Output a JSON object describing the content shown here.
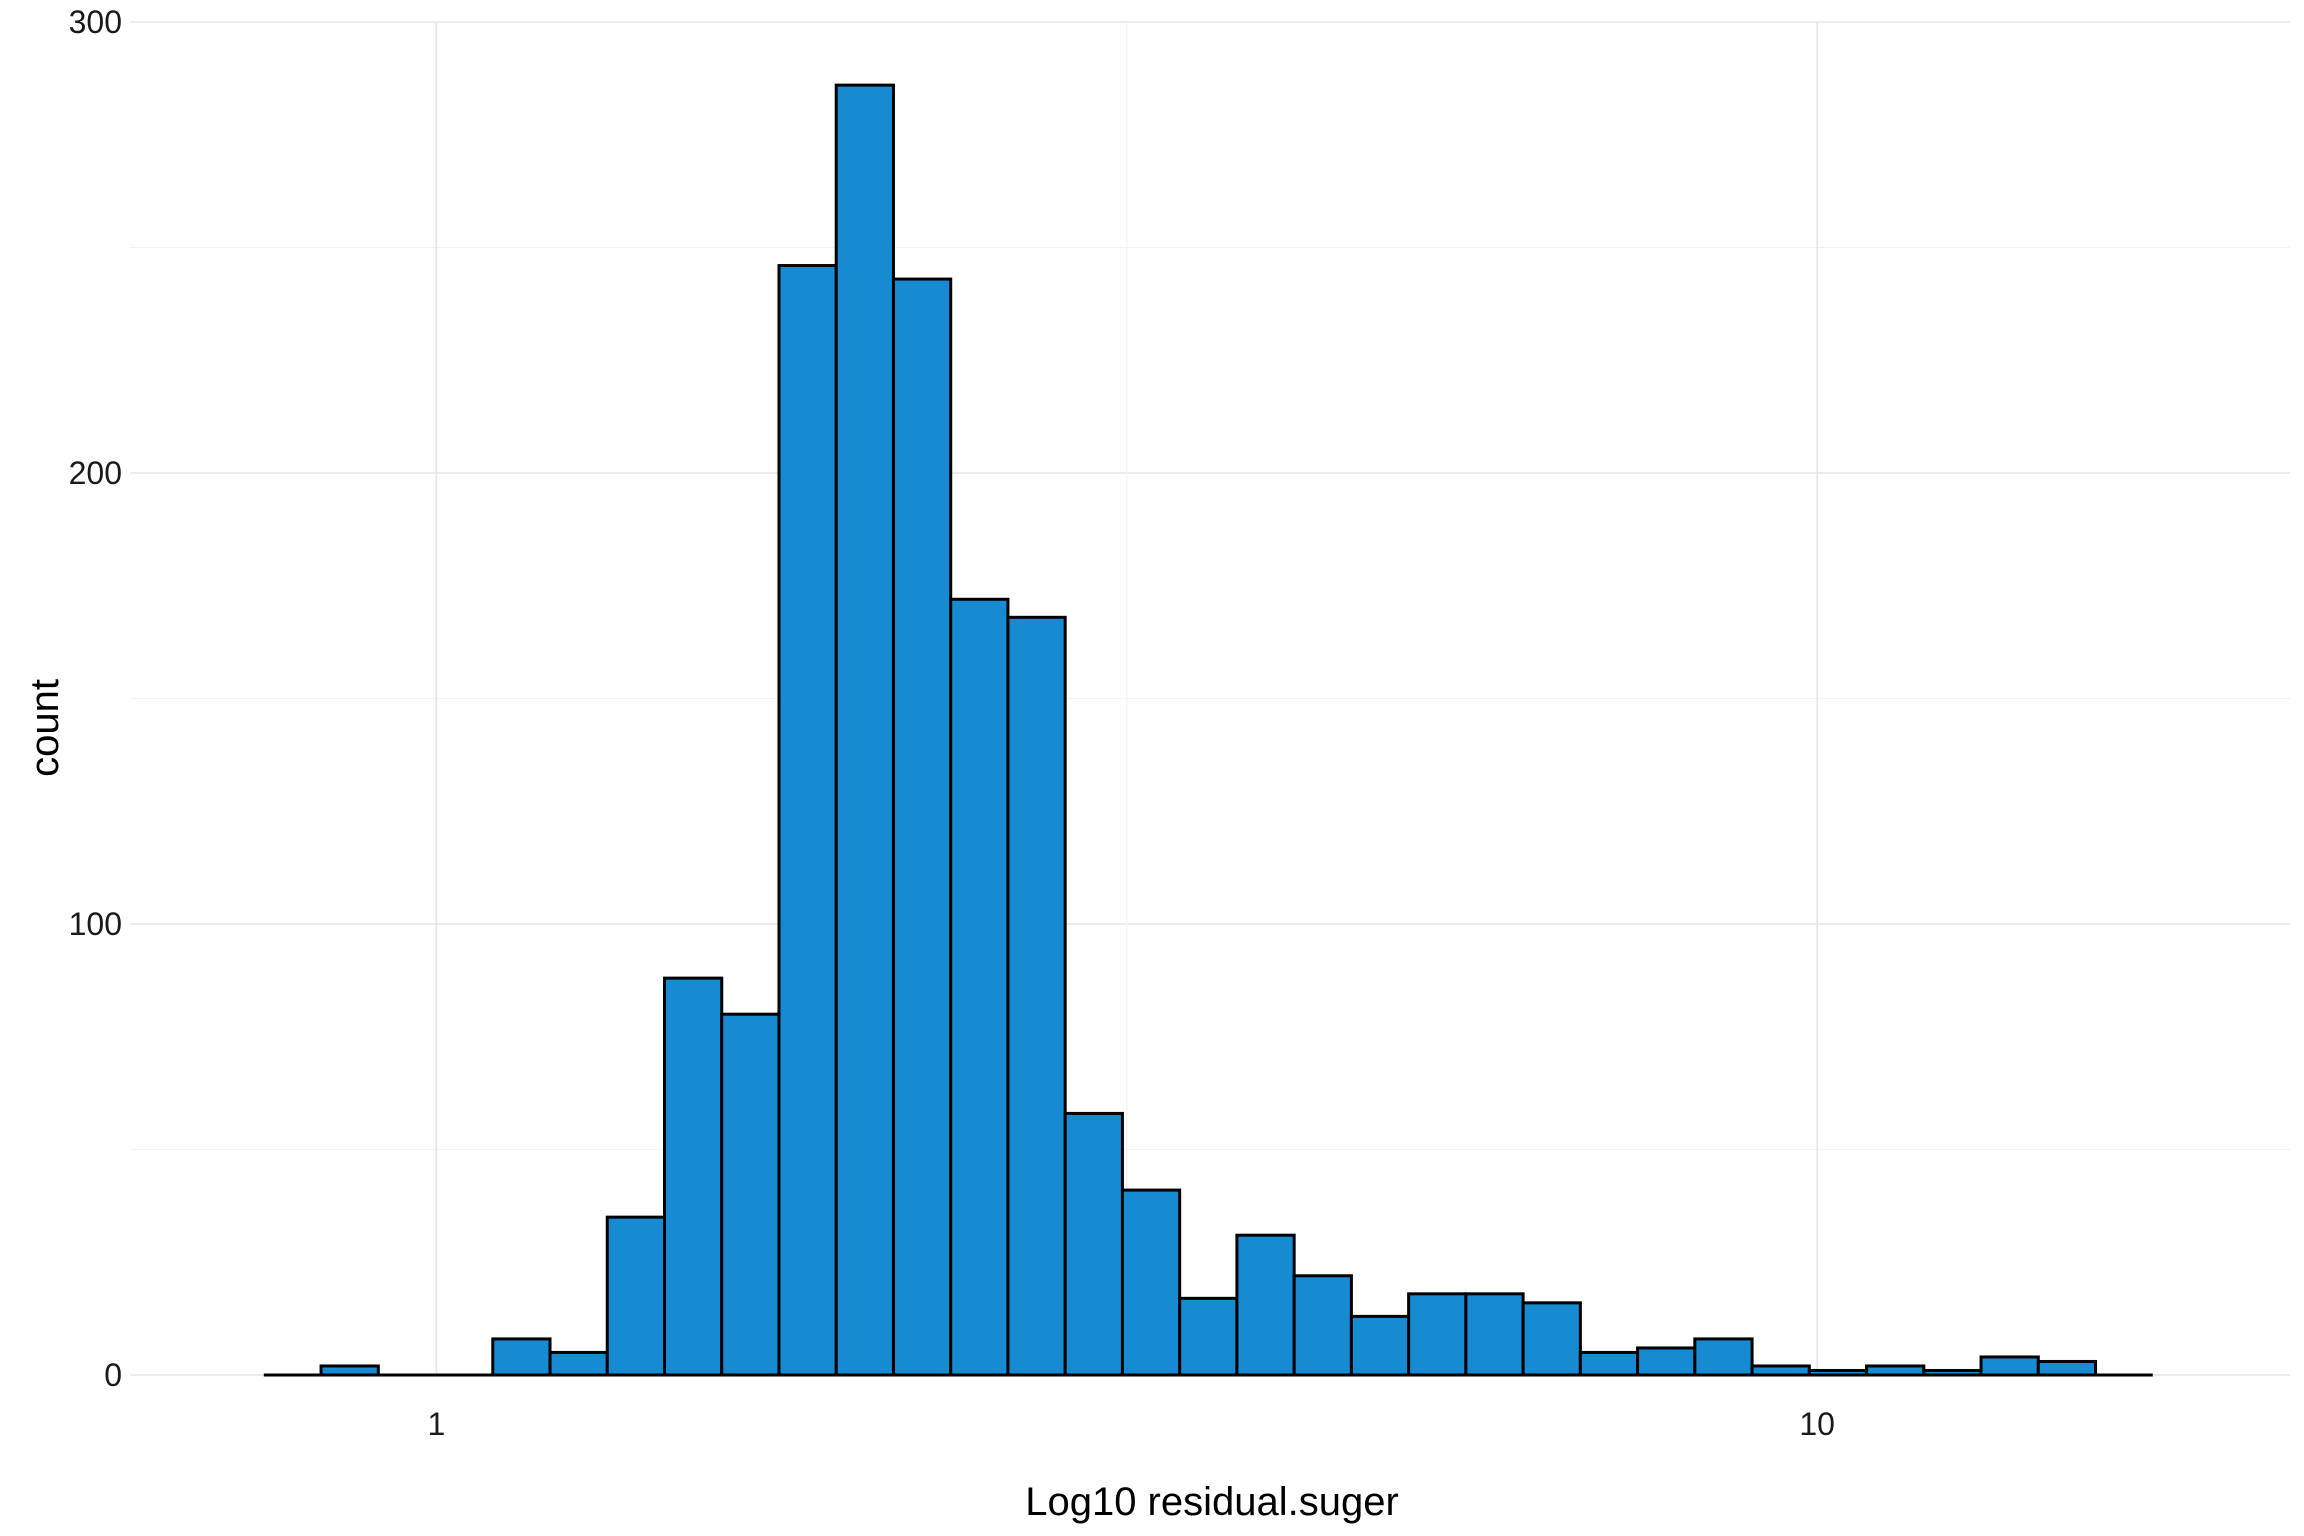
{
  "chart_data": {
    "type": "bar",
    "subtype": "histogram",
    "title": "",
    "xlabel": "Log10 residual.suger",
    "ylabel": "count",
    "x_scale": "log10",
    "x_ticks": [
      1,
      10
    ],
    "x_tick_labels": [
      "1",
      "10"
    ],
    "y_ticks": [
      0,
      100,
      200,
      300
    ],
    "y_tick_labels": [
      "0",
      "100",
      "200",
      "300"
    ],
    "ylim": [
      0,
      300
    ],
    "xlim": [
      0.6,
      22
    ],
    "grid": true,
    "legend": "none",
    "bin_count": 33,
    "bin_range": [
      0.75,
      17.5
    ],
    "values": [
      0,
      2,
      0,
      0,
      8,
      5,
      35,
      88,
      80,
      246,
      286,
      243,
      172,
      168,
      58,
      41,
      17,
      31,
      22,
      13,
      18,
      18,
      16,
      5,
      6,
      8,
      2,
      1,
      2,
      1,
      4,
      3,
      0
    ],
    "colors": {
      "bar_fill": "#168bd2",
      "bar_outline": "#000000",
      "grid": "#e6e6e6"
    }
  }
}
